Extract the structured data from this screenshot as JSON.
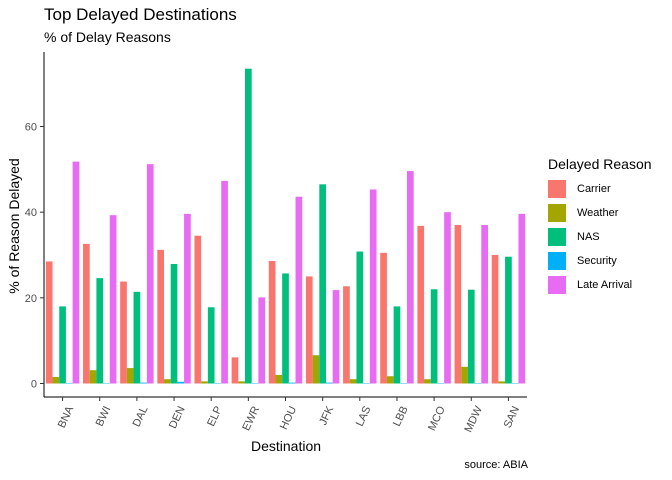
{
  "chart_data": {
    "type": "bar",
    "title": "Top Delayed Destinations",
    "subtitle": "% of Delay Reasons",
    "xlabel": "Destination",
    "ylabel": "% of Reason Delayed",
    "caption": "source: ABIA",
    "legend_title": "Delayed Reason",
    "legend_position": "right",
    "grid": false,
    "ylim": [
      0,
      75
    ],
    "yticks": [
      0,
      20,
      40,
      60
    ],
    "categories": [
      "BNA",
      "BWI",
      "DAL",
      "DEN",
      "ELP",
      "EWR",
      "HOU",
      "JFK",
      "LAS",
      "LBB",
      "MCO",
      "MDW",
      "SAN"
    ],
    "series": [
      {
        "name": "Carrier",
        "color": "#F8766D",
        "values": [
          28.5,
          32.6,
          23.8,
          31.2,
          34.5,
          6.1,
          28.6,
          25.0,
          22.7,
          30.5,
          36.8,
          37.0,
          30.0
        ]
      },
      {
        "name": "Weather",
        "color": "#A3A500",
        "values": [
          1.5,
          3.1,
          3.6,
          1.0,
          0.5,
          0.5,
          2.0,
          6.6,
          1.0,
          1.7,
          1.0,
          3.9,
          0.5
        ]
      },
      {
        "name": "NAS",
        "color": "#00BF7D",
        "values": [
          18.0,
          24.6,
          21.4,
          27.9,
          17.8,
          73.5,
          25.7,
          46.5,
          30.8,
          18.0,
          22.0,
          21.9,
          29.6
        ]
      },
      {
        "name": "Security",
        "color": "#00B0F6",
        "values": [
          0.1,
          0.1,
          0.2,
          0.4,
          0.1,
          0.1,
          0.2,
          0.2,
          0.1,
          0.1,
          0.1,
          0.1,
          0.1
        ]
      },
      {
        "name": "Late Arrival",
        "color": "#E76BF3",
        "values": [
          51.8,
          39.3,
          51.2,
          39.6,
          47.3,
          20.1,
          43.6,
          21.8,
          45.3,
          49.6,
          40.0,
          37.0,
          39.6
        ]
      }
    ]
  }
}
